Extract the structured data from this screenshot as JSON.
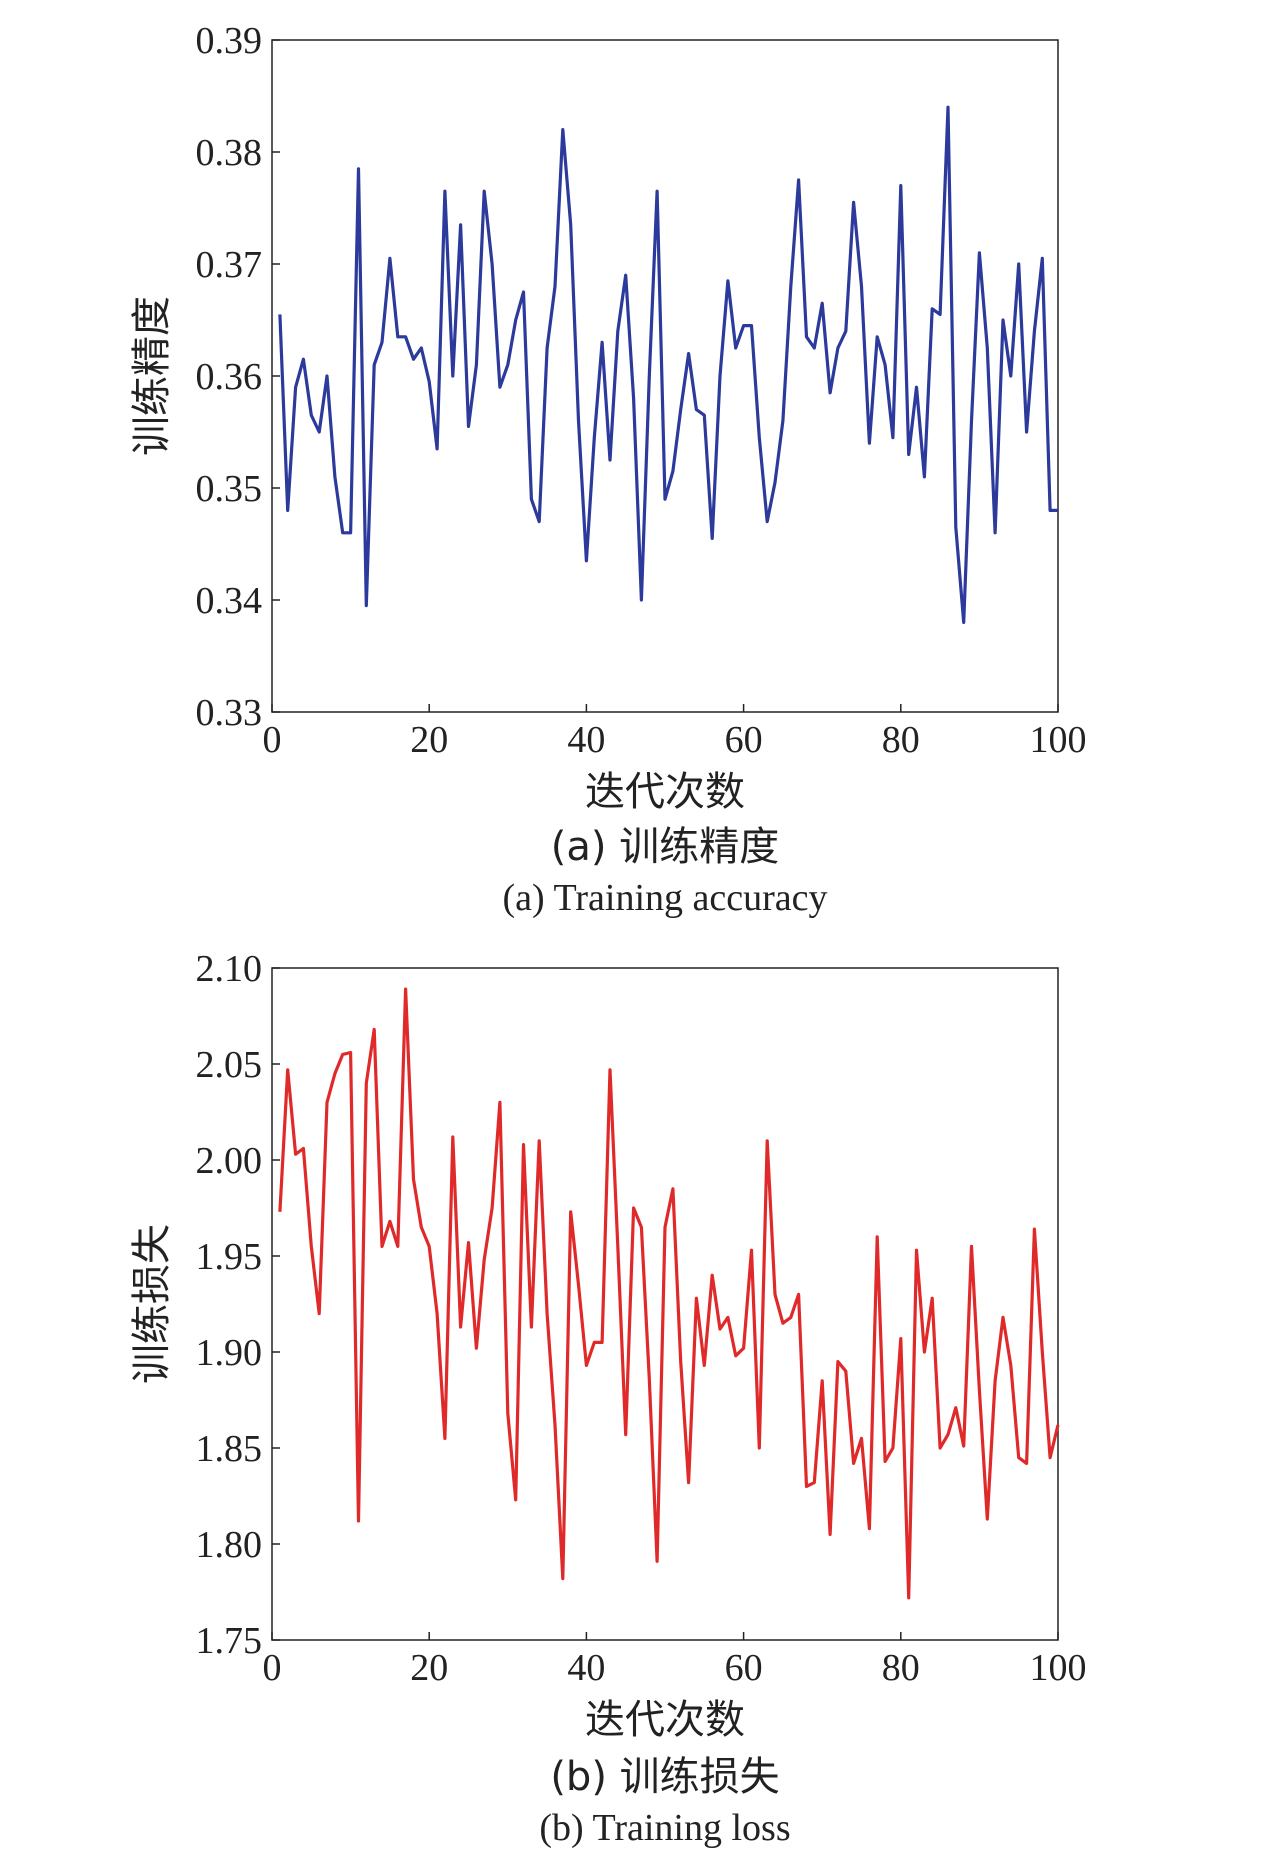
{
  "chart_data": [
    {
      "type": "line",
      "xlabel": "迭代次数",
      "ylabel": "训练精度",
      "caption_cn": "(a) 训练精度",
      "caption_en": "(a) Training accuracy",
      "xlim": [
        0,
        100
      ],
      "ylim": [
        0.33,
        0.39
      ],
      "xticks": [
        "0",
        "20",
        "40",
        "60",
        "80",
        "100"
      ],
      "yticks": [
        "0.33",
        "0.34",
        "0.35",
        "0.36",
        "0.37",
        "0.38",
        "0.39"
      ],
      "grid": false,
      "color": "#2b3a9b",
      "series": [
        {
          "x": [
            1,
            2,
            3,
            4,
            5,
            6,
            7,
            8,
            9,
            10,
            11,
            12,
            13,
            14,
            15,
            16,
            17,
            18,
            19,
            20,
            21,
            22,
            23,
            24,
            25,
            26,
            27,
            28,
            29,
            30,
            31,
            32,
            33,
            34,
            35,
            36,
            37,
            38,
            39,
            40,
            41,
            42,
            43,
            44,
            45,
            46,
            47,
            48,
            49,
            50,
            51,
            52,
            53,
            54,
            55,
            56,
            57,
            58,
            59,
            60,
            61,
            62,
            63,
            64,
            65,
            66,
            67,
            68,
            69,
            70,
            71,
            72,
            73,
            74,
            75,
            76,
            77,
            78,
            79,
            80,
            81,
            82,
            83,
            84,
            85,
            86,
            87,
            88,
            89,
            90,
            91,
            92,
            93,
            94,
            95,
            96,
            97,
            98,
            99,
            100
          ],
          "values": [
            0.3655,
            0.348,
            0.359,
            0.3615,
            0.3565,
            0.355,
            0.36,
            0.351,
            0.346,
            0.346,
            0.3785,
            0.3395,
            0.361,
            0.363,
            0.3705,
            0.3635,
            0.3635,
            0.3615,
            0.3625,
            0.3595,
            0.3535,
            0.3765,
            0.36,
            0.3735,
            0.3555,
            0.361,
            0.3765,
            0.37,
            0.359,
            0.361,
            0.365,
            0.3675,
            0.349,
            0.347,
            0.3625,
            0.368,
            0.382,
            0.3735,
            0.356,
            0.3435,
            0.3545,
            0.363,
            0.3525,
            0.364,
            0.369,
            0.358,
            0.34,
            0.36,
            0.3765,
            0.349,
            0.3515,
            0.357,
            0.362,
            0.357,
            0.3565,
            0.3455,
            0.36,
            0.3685,
            0.3625,
            0.3645,
            0.3645,
            0.3545,
            0.347,
            0.3505,
            0.356,
            0.368,
            0.3775,
            0.3635,
            0.3625,
            0.3665,
            0.3585,
            0.3625,
            0.364,
            0.3755,
            0.368,
            0.354,
            0.3635,
            0.361,
            0.3545,
            0.377,
            0.353,
            0.359,
            0.351,
            0.366,
            0.3655,
            0.384,
            0.3465,
            0.338,
            0.356,
            0.371,
            0.3625,
            0.346,
            0.365,
            0.36,
            0.37,
            0.355,
            0.364,
            0.3705,
            0.348,
            0.348
          ]
        }
      ]
    },
    {
      "type": "line",
      "xlabel": "迭代次数",
      "ylabel": "训练损失",
      "caption_cn": "(b) 训练损失",
      "caption_en": "(b) Training loss",
      "xlim": [
        0,
        100
      ],
      "ylim": [
        1.75,
        2.1
      ],
      "xticks": [
        "0",
        "20",
        "40",
        "60",
        "80",
        "100"
      ],
      "yticks": [
        "1.75",
        "1.80",
        "1.85",
        "1.90",
        "1.95",
        "2.00",
        "2.05",
        "2.10"
      ],
      "grid": false,
      "color": "#e02a2a",
      "series": [
        {
          "x": [
            1,
            2,
            3,
            4,
            5,
            6,
            7,
            8,
            9,
            10,
            11,
            12,
            13,
            14,
            15,
            16,
            17,
            18,
            19,
            20,
            21,
            22,
            23,
            24,
            25,
            26,
            27,
            28,
            29,
            30,
            31,
            32,
            33,
            34,
            35,
            36,
            37,
            38,
            39,
            40,
            41,
            42,
            43,
            44,
            45,
            46,
            47,
            48,
            49,
            50,
            51,
            52,
            53,
            54,
            55,
            56,
            57,
            58,
            59,
            60,
            61,
            62,
            63,
            64,
            65,
            66,
            67,
            68,
            69,
            70,
            71,
            72,
            73,
            74,
            75,
            76,
            77,
            78,
            79,
            80,
            81,
            82,
            83,
            84,
            85,
            86,
            87,
            88,
            89,
            90,
            91,
            92,
            93,
            94,
            95,
            96,
            97,
            98,
            99,
            100
          ],
          "values": [
            1.973,
            2.047,
            2.003,
            2.006,
            1.955,
            1.92,
            2.03,
            2.045,
            2.055,
            2.056,
            1.812,
            2.04,
            2.068,
            1.955,
            1.968,
            1.955,
            2.089,
            1.99,
            1.965,
            1.955,
            1.92,
            1.855,
            2.012,
            1.913,
            1.957,
            1.902,
            1.948,
            1.975,
            2.03,
            1.868,
            1.823,
            2.008,
            1.913,
            2.01,
            1.92,
            1.862,
            1.782,
            1.973,
            1.935,
            1.893,
            1.905,
            1.905,
            2.047,
            1.955,
            1.857,
            1.975,
            1.965,
            1.886,
            1.791,
            1.965,
            1.985,
            1.895,
            1.832,
            1.928,
            1.893,
            1.94,
            1.912,
            1.918,
            1.898,
            1.902,
            1.953,
            1.85,
            2.01,
            1.93,
            1.915,
            1.918,
            1.93,
            1.83,
            1.832,
            1.885,
            1.805,
            1.895,
            1.89,
            1.842,
            1.855,
            1.808,
            1.96,
            1.843,
            1.85,
            1.907,
            1.772,
            1.953,
            1.9,
            1.928,
            1.85,
            1.857,
            1.871,
            1.851,
            1.955,
            1.88,
            1.813,
            1.885,
            1.918,
            1.893,
            1.845,
            1.842,
            1.964,
            1.9,
            1.845,
            1.862
          ]
        }
      ]
    }
  ]
}
